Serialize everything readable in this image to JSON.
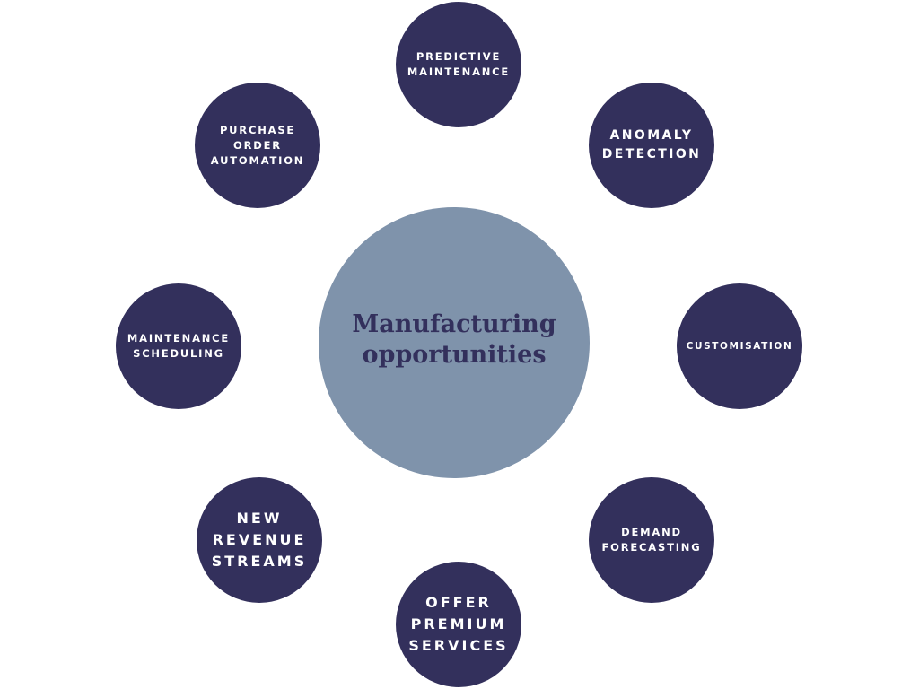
{
  "diagram": {
    "center": {
      "lines": [
        "Manufacturing",
        "opportunities"
      ]
    },
    "nodes": [
      {
        "id": "predictive-maintenance",
        "lines": [
          "PREDICTIVE",
          "MAINTENANCE"
        ]
      },
      {
        "id": "anomaly-detection",
        "lines": [
          "ANOMALY",
          "DETECTION"
        ]
      },
      {
        "id": "customisation",
        "lines": [
          "CUSTOMISATION"
        ]
      },
      {
        "id": "demand-forecasting",
        "lines": [
          "DEMAND",
          "FORECASTING"
        ]
      },
      {
        "id": "offer-premium-services",
        "lines": [
          "OFFER",
          "PREMIUM",
          "SERVICES"
        ]
      },
      {
        "id": "new-revenue-streams",
        "lines": [
          "NEW",
          "REVENUE",
          "STREAMS"
        ]
      },
      {
        "id": "maintenance-scheduling",
        "lines": [
          "MAINTENANCE",
          "SCHEDULING"
        ]
      },
      {
        "id": "purchase-order-automation",
        "lines": [
          "PURCHASE",
          "ORDER",
          "AUTOMATION"
        ]
      }
    ],
    "colors": {
      "node_fill": "#33305c",
      "hub_fill": "#7f93ab",
      "hub_text": "#33305c",
      "node_text": "#ffffff",
      "background": "#ffffff"
    }
  }
}
